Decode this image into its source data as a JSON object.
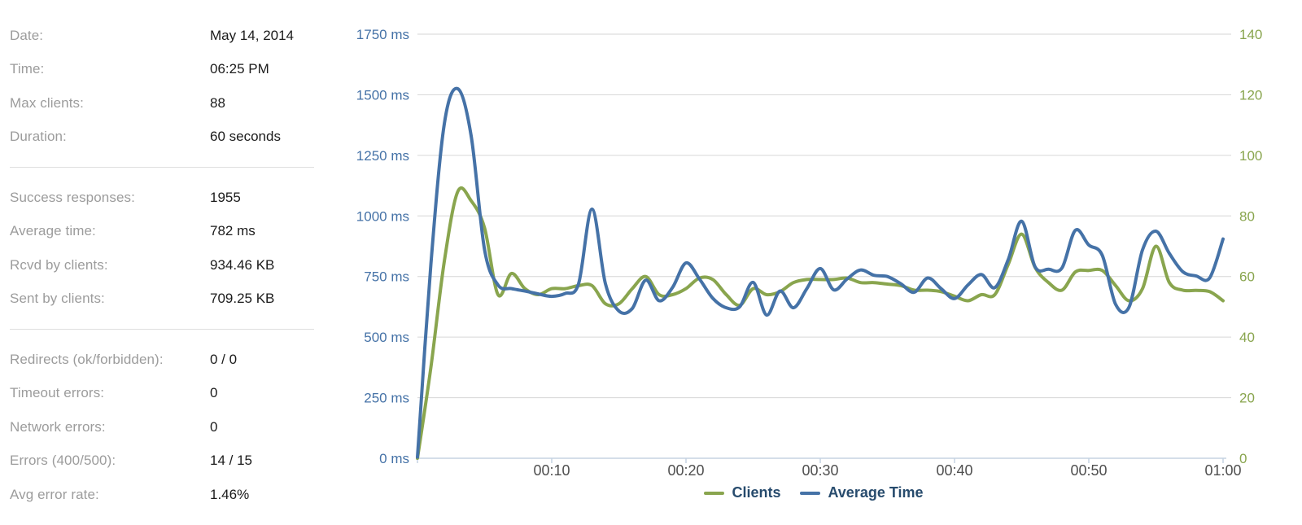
{
  "panel": {
    "sections": [
      {
        "rows": [
          {
            "key": "date",
            "label": "Date:",
            "value": "May 14, 2014"
          },
          {
            "key": "time",
            "label": "Time:",
            "value": "06:25 PM"
          },
          {
            "key": "max-clients",
            "label": "Max clients:",
            "value": "88"
          },
          {
            "key": "duration",
            "label": "Duration:",
            "value": "60 seconds"
          }
        ]
      },
      {
        "rows": [
          {
            "key": "success-responses",
            "label": "Success responses:",
            "value": "1955"
          },
          {
            "key": "average-time",
            "label": "Average time:",
            "value": "782 ms"
          },
          {
            "key": "rcvd-by-clients",
            "label": "Rcvd by clients:",
            "value": "934.46 KB"
          },
          {
            "key": "sent-by-clients",
            "label": "Sent by clients:",
            "value": "709.25 KB"
          }
        ]
      },
      {
        "rows": [
          {
            "key": "redirects",
            "label": "Redirects (ok/forbidden):",
            "value": "0 / 0"
          },
          {
            "key": "timeout-errors",
            "label": "Timeout errors:",
            "value": "0"
          },
          {
            "key": "network-errors",
            "label": "Network errors:",
            "value": "0"
          },
          {
            "key": "errors-400-500",
            "label": "Errors (400/500):",
            "value": "14 / 15"
          },
          {
            "key": "avg-error-rate",
            "label": "Avg error rate:",
            "value": "1.46%"
          }
        ]
      }
    ]
  },
  "chart_data": {
    "type": "line",
    "title": "",
    "grid": "horizontal",
    "legend_position": "bottom-center",
    "x_range_seconds": [
      0,
      60
    ],
    "x_step_seconds": 1,
    "x_ticks": [
      "00:10",
      "00:20",
      "00:30",
      "00:40",
      "00:50",
      "01:00"
    ],
    "y_left": {
      "unit": "ms",
      "range": [
        0,
        1750
      ],
      "tick_interval": 250,
      "ticks": [
        "0 ms",
        "250 ms",
        "500 ms",
        "750 ms",
        "1000 ms",
        "1250 ms",
        "1500 ms",
        "1750 ms"
      ],
      "color": "#4572A7"
    },
    "y_right": {
      "unit": "clients",
      "range": [
        0,
        140
      ],
      "tick_interval": 20,
      "ticks": [
        "0",
        "20",
        "40",
        "60",
        "80",
        "100",
        "120",
        "140"
      ],
      "color": "#89A54E"
    },
    "series": [
      {
        "name": "Clients",
        "color": "#89A54E",
        "axis": "right",
        "values": [
          0,
          30,
          65,
          88,
          85,
          76,
          54,
          61,
          56,
          54,
          56,
          56,
          57,
          57,
          51,
          51,
          56,
          60,
          54,
          54,
          56,
          59.5,
          59,
          54,
          50.5,
          56,
          54,
          55,
          58,
          59,
          59,
          59,
          59.5,
          58,
          58,
          57.5,
          57,
          55.5,
          55.5,
          55,
          53.5,
          52,
          54,
          54,
          64,
          74,
          63,
          58,
          55.5,
          61.5,
          62,
          62,
          57,
          52,
          56,
          70,
          58,
          55.5,
          55.4,
          55,
          52
        ]
      },
      {
        "name": "Average Time",
        "color": "#4572A7",
        "axis": "left",
        "values": [
          5,
          800,
          1380,
          1525,
          1330,
          860,
          715,
          700,
          690,
          678,
          668,
          680,
          720,
          1028,
          720,
          608,
          618,
          735,
          650,
          705,
          806,
          740,
          660,
          621,
          625,
          726,
          591,
          690,
          621,
          700,
          783,
          695,
          740,
          777,
          755,
          750,
          720,
          685,
          744,
          700,
          659,
          715,
          758,
          704,
          820,
          978,
          790,
          780,
          785,
          941,
          880,
          838,
          635,
          624,
          860,
          937,
          845,
          770,
          752,
          744,
          905
        ]
      }
    ],
    "colors": {
      "grid_line": "#d6d6d6",
      "axis_line": "#c5d3e2",
      "x_tick_label": "#4f4f4f",
      "legend_text": "#274b6d"
    }
  }
}
